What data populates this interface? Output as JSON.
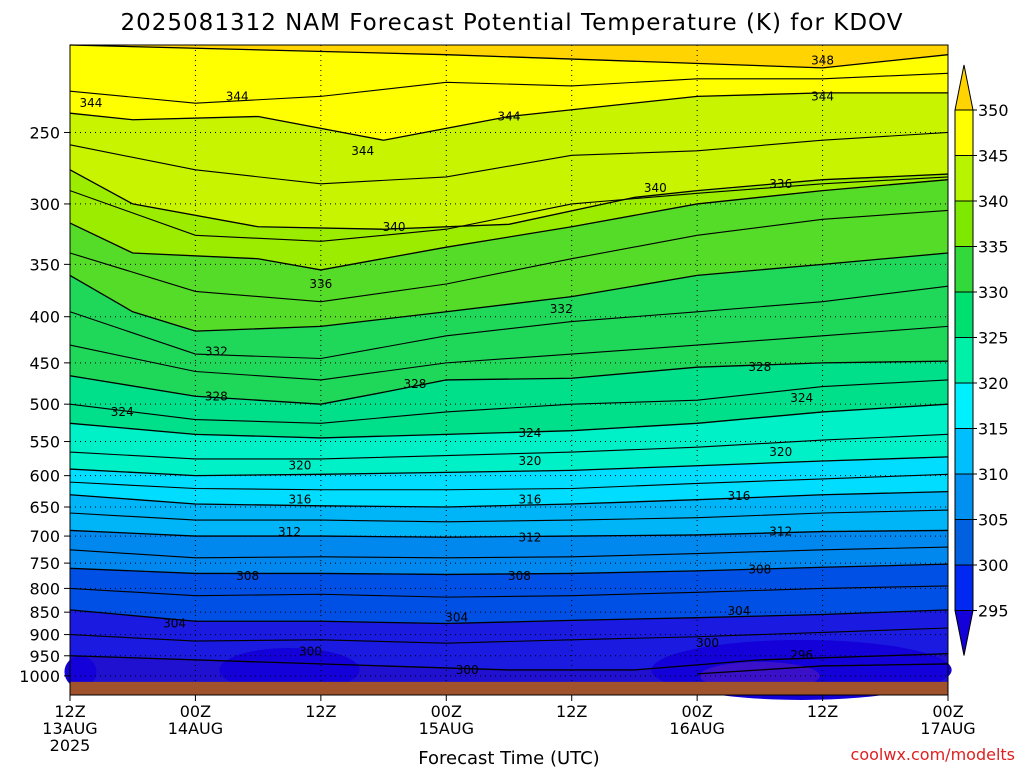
{
  "title": "2025081312 NAM Forecast Potential Temperature (K) for KDOV",
  "xlabel": "Forecast Time (UTC)",
  "credit": "coolwx.com/modelts",
  "y_axis": {
    "ticks": [
      "250",
      "300",
      "350",
      "400",
      "450",
      "500",
      "550",
      "600",
      "650",
      "700",
      "750",
      "800",
      "850",
      "900",
      "950",
      "1000"
    ]
  },
  "x_axis": {
    "ticks": [
      {
        "line1": "12Z",
        "line2": "13AUG",
        "line3": "2025"
      },
      {
        "line1": "00Z",
        "line2": "14AUG",
        "line3": ""
      },
      {
        "line1": "12Z",
        "line2": "",
        "line3": ""
      },
      {
        "line1": "00Z",
        "line2": "15AUG",
        "line3": ""
      },
      {
        "line1": "12Z",
        "line2": "",
        "line3": ""
      },
      {
        "line1": "00Z",
        "line2": "16AUG",
        "line3": ""
      },
      {
        "line1": "12Z",
        "line2": "",
        "line3": ""
      },
      {
        "line1": "00Z",
        "line2": "17AUG",
        "line3": ""
      }
    ]
  },
  "colorbar": {
    "labels": [
      "350",
      "345",
      "340",
      "335",
      "330",
      "325",
      "320",
      "315",
      "310",
      "305",
      "300",
      "295"
    ],
    "colors": [
      "#ffd400",
      "#ffff00",
      "#b8f400",
      "#7fe800",
      "#33d83a",
      "#00e070",
      "#00f0a8",
      "#00f0ff",
      "#00bfff",
      "#0090f0",
      "#0060e0",
      "#0028f0",
      "#1400d8"
    ]
  },
  "chart_data": {
    "type": "heatmap",
    "title": "2025081312 NAM Forecast Potential Temperature (K) for KDOV",
    "xlabel": "Forecast Time (UTC)",
    "ylabel": "",
    "xlim": [
      "2025-08-13 12Z",
      "2025-08-17 00Z"
    ],
    "ylim": [
      1000,
      200
    ],
    "y_scale": "log-pressure",
    "grid": true,
    "series": [
      {
        "name": "348",
        "values": [
          [
            0,
            200
          ],
          [
            36,
            205
          ],
          [
            72,
            212
          ],
          [
            84,
            205
          ]
        ]
      },
      {
        "name": "344",
        "values": [
          [
            0,
            238
          ],
          [
            6,
            242
          ],
          [
            18,
            240
          ],
          [
            30,
            255
          ],
          [
            42,
            240
          ],
          [
            60,
            228
          ],
          [
            72,
            226
          ],
          [
            84,
            226
          ]
        ]
      },
      {
        "name": "340",
        "values": [
          [
            0,
            275
          ],
          [
            6,
            300
          ],
          [
            18,
            318
          ],
          [
            30,
            320
          ],
          [
            42,
            316
          ],
          [
            54,
            295
          ],
          [
            60,
            290
          ],
          [
            72,
            282
          ],
          [
            84,
            278
          ]
        ]
      },
      {
        "name": "336",
        "values": [
          [
            0,
            315
          ],
          [
            6,
            340
          ],
          [
            18,
            345
          ],
          [
            24,
            355
          ],
          [
            36,
            335
          ],
          [
            48,
            318
          ],
          [
            60,
            300
          ],
          [
            72,
            290
          ],
          [
            84,
            282
          ]
        ]
      },
      {
        "name": "332",
        "values": [
          [
            0,
            360
          ],
          [
            6,
            395
          ],
          [
            12,
            415
          ],
          [
            24,
            410
          ],
          [
            36,
            395
          ],
          [
            48,
            380
          ],
          [
            60,
            360
          ],
          [
            72,
            350
          ],
          [
            84,
            340
          ]
        ]
      },
      {
        "name": "328",
        "values": [
          [
            0,
            465
          ],
          [
            12,
            490
          ],
          [
            24,
            500
          ],
          [
            30,
            485
          ],
          [
            36,
            470
          ],
          [
            48,
            468
          ],
          [
            60,
            455
          ],
          [
            72,
            450
          ],
          [
            84,
            448
          ]
        ]
      },
      {
        "name": "324",
        "values": [
          [
            0,
            525
          ],
          [
            12,
            540
          ],
          [
            24,
            545
          ],
          [
            36,
            540
          ],
          [
            48,
            535
          ],
          [
            60,
            525
          ],
          [
            72,
            510
          ],
          [
            84,
            500
          ]
        ]
      },
      {
        "name": "320",
        "values": [
          [
            0,
            590
          ],
          [
            12,
            600
          ],
          [
            24,
            598
          ],
          [
            36,
            595
          ],
          [
            48,
            592
          ],
          [
            60,
            585
          ],
          [
            72,
            578
          ],
          [
            84,
            572
          ]
        ]
      },
      {
        "name": "316",
        "values": [
          [
            0,
            630
          ],
          [
            12,
            645
          ],
          [
            24,
            648
          ],
          [
            36,
            650
          ],
          [
            48,
            645
          ],
          [
            60,
            638
          ],
          [
            72,
            630
          ],
          [
            84,
            625
          ]
        ]
      },
      {
        "name": "312",
        "values": [
          [
            0,
            690
          ],
          [
            12,
            700
          ],
          [
            24,
            700
          ],
          [
            36,
            702
          ],
          [
            48,
            700
          ],
          [
            60,
            698
          ],
          [
            72,
            692
          ],
          [
            84,
            690
          ]
        ]
      },
      {
        "name": "308",
        "values": [
          [
            0,
            760
          ],
          [
            12,
            770
          ],
          [
            24,
            770
          ],
          [
            36,
            772
          ],
          [
            48,
            770
          ],
          [
            60,
            765
          ],
          [
            72,
            758
          ],
          [
            84,
            752
          ]
        ]
      },
      {
        "name": "304",
        "values": [
          [
            0,
            845
          ],
          [
            12,
            870
          ],
          [
            24,
            870
          ],
          [
            36,
            875
          ],
          [
            48,
            868
          ],
          [
            60,
            862
          ],
          [
            72,
            855
          ],
          [
            84,
            845
          ]
        ]
      },
      {
        "name": "300",
        "values": [
          [
            0,
            950
          ],
          [
            18,
            965
          ],
          [
            30,
            975
          ],
          [
            42,
            985
          ],
          [
            54,
            985
          ],
          [
            66,
            960
          ],
          [
            84,
            945
          ]
        ]
      },
      {
        "name": "296",
        "values": [
          [
            60,
            995
          ],
          [
            72,
            975
          ],
          [
            84,
            970
          ]
        ]
      }
    ]
  },
  "contour_labels": [
    {
      "text": "348",
      "t": 72,
      "p": 208
    },
    {
      "text": "344",
      "t": 2,
      "p": 232
    },
    {
      "text": "344",
      "t": 16,
      "p": 228
    },
    {
      "text": "344",
      "t": 28,
      "p": 262
    },
    {
      "text": "344",
      "t": 42,
      "p": 240
    },
    {
      "text": "344",
      "t": 72,
      "p": 228
    },
    {
      "text": "340",
      "t": 56,
      "p": 288
    },
    {
      "text": "340",
      "t": 31,
      "p": 318
    },
    {
      "text": "336",
      "t": 68,
      "p": 285
    },
    {
      "text": "336",
      "t": 24,
      "p": 368
    },
    {
      "text": "332",
      "t": 47,
      "p": 392
    },
    {
      "text": "332",
      "t": 14,
      "p": 437
    },
    {
      "text": "328",
      "t": 33,
      "p": 475
    },
    {
      "text": "328",
      "t": 14,
      "p": 490
    },
    {
      "text": "328",
      "t": 66,
      "p": 455
    },
    {
      "text": "324",
      "t": 5,
      "p": 510
    },
    {
      "text": "324",
      "t": 44,
      "p": 538
    },
    {
      "text": "324",
      "t": 70,
      "p": 492
    },
    {
      "text": "320",
      "t": 22,
      "p": 585
    },
    {
      "text": "320",
      "t": 44,
      "p": 578
    },
    {
      "text": "320",
      "t": 68,
      "p": 565
    },
    {
      "text": "316",
      "t": 22,
      "p": 638
    },
    {
      "text": "316",
      "t": 44,
      "p": 638
    },
    {
      "text": "316",
      "t": 64,
      "p": 632
    },
    {
      "text": "312",
      "t": 21,
      "p": 693
    },
    {
      "text": "312",
      "t": 44,
      "p": 703
    },
    {
      "text": "312",
      "t": 68,
      "p": 692
    },
    {
      "text": "308",
      "t": 17,
      "p": 775
    },
    {
      "text": "308",
      "t": 43,
      "p": 775
    },
    {
      "text": "308",
      "t": 66,
      "p": 762
    },
    {
      "text": "304",
      "t": 10,
      "p": 875
    },
    {
      "text": "304",
      "t": 37,
      "p": 862
    },
    {
      "text": "304",
      "t": 64,
      "p": 848
    },
    {
      "text": "300",
      "t": 23,
      "p": 940
    },
    {
      "text": "300",
      "t": 38,
      "p": 985
    },
    {
      "text": "300",
      "t": 61,
      "p": 920
    },
    {
      "text": "296",
      "t": 70,
      "p": 948
    }
  ]
}
